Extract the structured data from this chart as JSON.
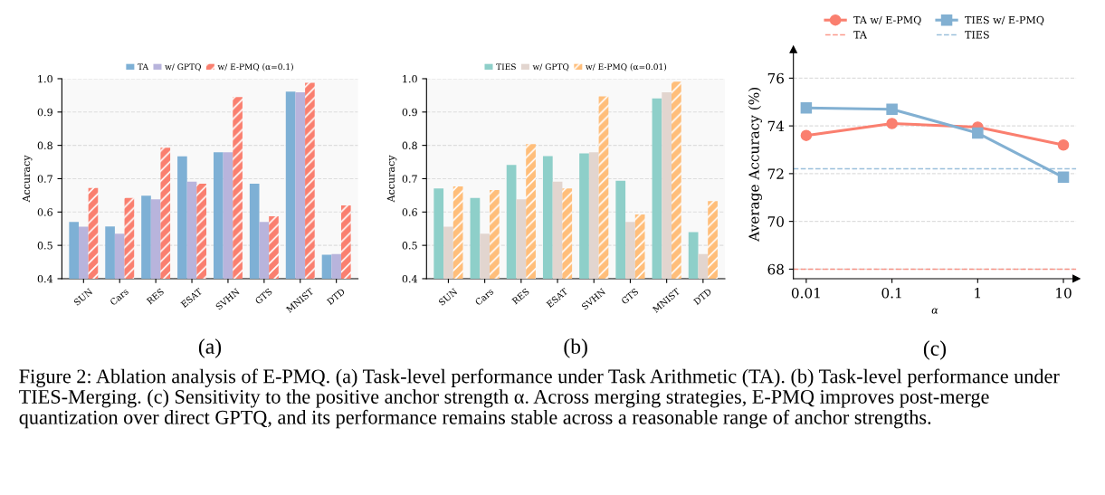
{
  "chart_data": [
    {
      "type": "bar",
      "title": "(a)",
      "ylabel": "Accuracy",
      "categories": [
        "SUN",
        "Cars",
        "RES",
        "ESAT",
        "SVHN",
        "GTS",
        "MNIST",
        "DTD"
      ],
      "series": [
        {
          "name": "TA",
          "color": "#7eb0d5",
          "values": [
            0.57,
            0.557,
            0.649,
            0.767,
            0.779,
            0.685,
            0.961,
            0.472
          ]
        },
        {
          "name": "w/ GPTQ",
          "color": "#b8b4dc",
          "values": [
            0.556,
            0.535,
            0.638,
            0.691,
            0.779,
            0.57,
            0.959,
            0.474
          ]
        },
        {
          "name": "w/ E-PMQ (α=0.1)",
          "color": "#fa7f6f",
          "values": [
            0.672,
            0.642,
            0.793,
            0.685,
            0.945,
            0.587,
            0.988,
            0.62
          ]
        }
      ],
      "ylim": [
        0.4,
        1.0
      ],
      "yticks": [
        {
          "value": 0.4,
          "label": "0.4"
        },
        {
          "value": 0.5,
          "label": "0.5"
        },
        {
          "value": 0.6,
          "label": "0.6"
        },
        {
          "value": 0.7,
          "label": "0.7"
        },
        {
          "value": 0.8,
          "label": "0.8"
        },
        {
          "value": 0.9,
          "label": "0.9"
        },
        {
          "value": 1.0,
          "label": "1.0"
        }
      ],
      "grid": "y",
      "legend": "top",
      "annotations": [
        "Figure 2: Ablation analysis of E-PMQ. (a) Task-level performance under Task Arithmetic (TA). (b) Task-level performance under TIES-Merging. (c) Sensitivity to the positive anchor strength α. Across merging strategies, E-PMQ improves post-merge quantization over direct GPTQ, and its performance remains stable across a reasonable range of anchor strengths."
      ]
    },
    {
      "type": "bar",
      "title": "(b)",
      "ylabel": "Accuracy",
      "categories": [
        "SUN",
        "Cars",
        "RES",
        "ESAT",
        "SVHN",
        "GTS",
        "MNIST",
        "DTD"
      ],
      "series": [
        {
          "name": "TIES",
          "color": "#8ecfc9",
          "values": [
            0.671,
            0.642,
            0.741,
            0.768,
            0.776,
            0.694,
            0.941,
            0.54
          ]
        },
        {
          "name": "w/ GPTQ",
          "color": "#e2d5cf",
          "values": [
            0.556,
            0.535,
            0.638,
            0.691,
            0.779,
            0.57,
            0.959,
            0.474
          ]
        },
        {
          "name": "w/ E-PMQ (α=0.01)",
          "color": "#ffbe7a",
          "values": [
            0.677,
            0.666,
            0.804,
            0.671,
            0.947,
            0.593,
            0.991,
            0.633
          ]
        }
      ],
      "ylim": [
        0.4,
        1.0
      ],
      "yticks": [
        {
          "value": 0.4,
          "label": "0.4"
        },
        {
          "value": 0.5,
          "label": "0.5"
        },
        {
          "value": 0.6,
          "label": "0.6"
        },
        {
          "value": 0.7,
          "label": "0.7"
        },
        {
          "value": 0.8,
          "label": "0.8"
        },
        {
          "value": 0.9,
          "label": "0.9"
        },
        {
          "value": 1.0,
          "label": "1.0"
        }
      ],
      "grid": "y",
      "legend": "top"
    },
    {
      "type": "line",
      "title": "(c)",
      "xlabel": "α",
      "ylabel": "Average Accuracy (%)",
      "categories": [
        "0.01",
        "0.1",
        "1",
        "10"
      ],
      "series": [
        {
          "name": "TA w/ E-PMQ",
          "color": "#fa7f6f",
          "marker": "circle",
          "values": [
            73.6,
            74.1,
            73.95,
            73.2
          ]
        },
        {
          "name": "TIES w/ E-PMQ",
          "color": "#82b0d2",
          "marker": "square",
          "values": [
            74.75,
            74.7,
            73.7,
            71.85
          ]
        }
      ],
      "ref_lines": [
        {
          "axis": "y",
          "value": 68.0,
          "label": "TA",
          "color": "#fa7f6f",
          "line_style": "dashed"
        },
        {
          "axis": "y",
          "value": 72.2,
          "label": "TIES",
          "color": "#82b0d2",
          "line_style": "dashed"
        }
      ],
      "ylim": [
        67.6,
        77.2
      ],
      "yticks": [
        68,
        70,
        72,
        74,
        76
      ],
      "grid": "y",
      "legend": "top"
    }
  ]
}
